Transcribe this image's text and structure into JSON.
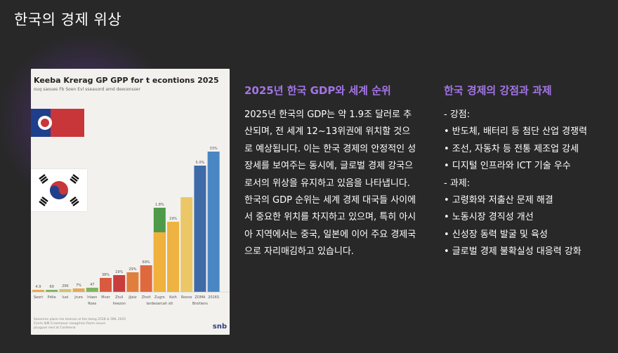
{
  "slide": {
    "title": "한국의 경제 위상"
  },
  "image": {
    "title": "Keeba Krerag GP GPP for t econtions 2025",
    "subtitle": "ouq saoues Fb Soen Evl sseauord amd deecensser",
    "footnote": [
      "Seeomne place me lorenan ol the leeeg 2528 & 5ML 2025",
      "Cinrle lbM Creomenor reeagrhen Rarm neuce",
      "pLugyue nesl at Cosdeena"
    ],
    "logo": "snb",
    "flag_colors": {
      "red": "#c8363a",
      "blue": "#1f3f8c"
    }
  },
  "chart_data": {
    "type": "bar",
    "title": "",
    "categories": [
      "Seort",
      "Pdiie",
      "Iuoi",
      "Jrure",
      "Irlaen",
      "Mver",
      "Ztuli",
      "Jijeiz",
      "Zhoit",
      "Zugro",
      "Koih",
      "Roone",
      "ZOMA",
      "2016S"
    ],
    "category_sublabels": [
      "",
      "",
      "",
      "",
      "Roes",
      "",
      "Ireezon",
      "",
      "",
      "Iardeoarcah stt",
      "",
      "",
      "Broitiens",
      ""
    ],
    "value_labels": [
      "4.9",
      "69",
      "20K",
      "7%",
      "47",
      "38%",
      "19%",
      "29%",
      "69%",
      "1.8%",
      "19%",
      "",
      "5.0%",
      "33%"
    ],
    "values": [
      3,
      3,
      4,
      5,
      6,
      20,
      24,
      28,
      38,
      120,
      100,
      135,
      180,
      200
    ],
    "colors": [
      "#e8a84a",
      "#7fb463",
      "#d4c36a",
      "#e3aa5a",
      "#80b45e",
      "#d95a3f",
      "#c93d3d",
      "#e07f3c",
      "#e0683e",
      "#4f9a48",
      "#eeb340",
      "#ebc768",
      "#3f6aa8",
      "#4a86c3"
    ],
    "overlay_bar": {
      "index": 9,
      "lower_value": 85,
      "lower_color": "#f0b23c"
    },
    "ylim": [
      0,
      210
    ]
  },
  "middle": {
    "heading": "2025년 한국 GDP와 세계 순위",
    "body": "2025년 한국의 GDP는 약 1.9조 달러로 추산되며, 전 세계 12~13위권에 위치할 것으로 예상됩니다. 이는 한국 경제의 안정적인 성장세를 보여주는 동시에, 글로벌 경제 강국으로서의 위상을 유지하고 있음을 나타냅니다. 한국의 GDP 순위는 세계 경제 대국들 사이에서 중요한 위치를 차지하고 있으며, 특히 아시아 지역에서는 중국, 일본에 이어 주요 경제국으로 자리매김하고 있습니다."
  },
  "right": {
    "heading": "한국 경제의 강점과 과제",
    "items": [
      "- 강점:",
      "• 반도체, 배터리 등 첨단 산업 경쟁력",
      "• 조선, 자동차 등 전통 제조업 강세",
      "• 디지털 인프라와 ICT 기술 우수",
      "- 과제:",
      "• 고령화와 저출산 문제 해결",
      "• 노동시장 경직성 개선",
      "• 신성장 동력 발굴 및 육성",
      "• 글로벌 경제 불확실성 대응력 강화"
    ]
  }
}
